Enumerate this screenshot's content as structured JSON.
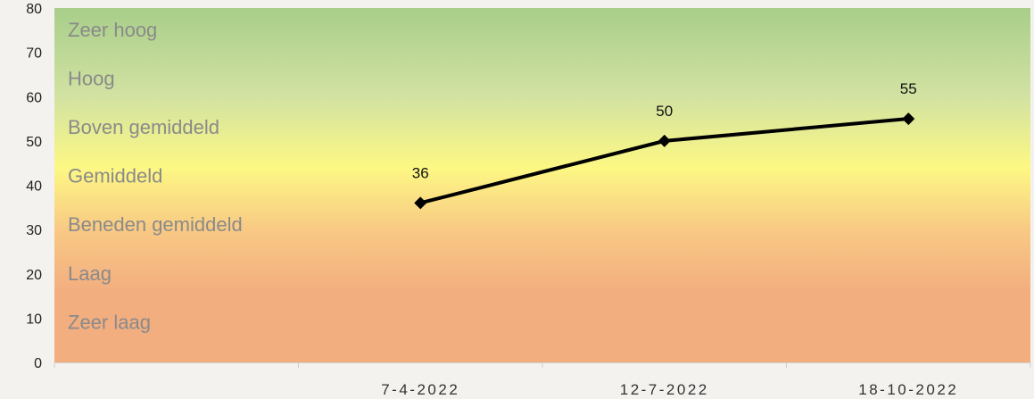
{
  "chart_data": {
    "type": "line",
    "title": "",
    "xlabel": "",
    "ylabel": "",
    "categories": [
      "",
      "7-4-2022",
      "12-7-2022",
      "18-10-2022"
    ],
    "x": [
      "7-4-2022",
      "12-7-2022",
      "18-10-2022"
    ],
    "series": [
      {
        "values": [
          36,
          50,
          55
        ]
      }
    ],
    "data_labels": [
      "36",
      "50",
      "55"
    ],
    "ylim": [
      0,
      80
    ],
    "yticks": [
      0,
      10,
      20,
      30,
      40,
      50,
      60,
      70,
      80
    ],
    "ytick_labels": [
      "0",
      "10",
      "20",
      "30",
      "40",
      "50",
      "60",
      "70",
      "80"
    ],
    "grid": false,
    "legend": "none",
    "line_color": "#000000",
    "background_bands": [
      {
        "label": "Zeer hoog",
        "value": 75
      },
      {
        "label": "Hoog",
        "value": 64
      },
      {
        "label": "Boven gemiddeld",
        "value": 53
      },
      {
        "label": "Gemiddeld",
        "value": 42
      },
      {
        "label": "Beneden gemiddeld",
        "value": 31
      },
      {
        "label": "Laag",
        "value": 20
      },
      {
        "label": "Zeer laag",
        "value": 9
      }
    ],
    "gradient_colors": {
      "top": "#a8ce8a",
      "upper": "#d2e2a2",
      "middle": "#fdf884",
      "lower": "#f8c884",
      "bottom": "#f3ae80"
    }
  }
}
